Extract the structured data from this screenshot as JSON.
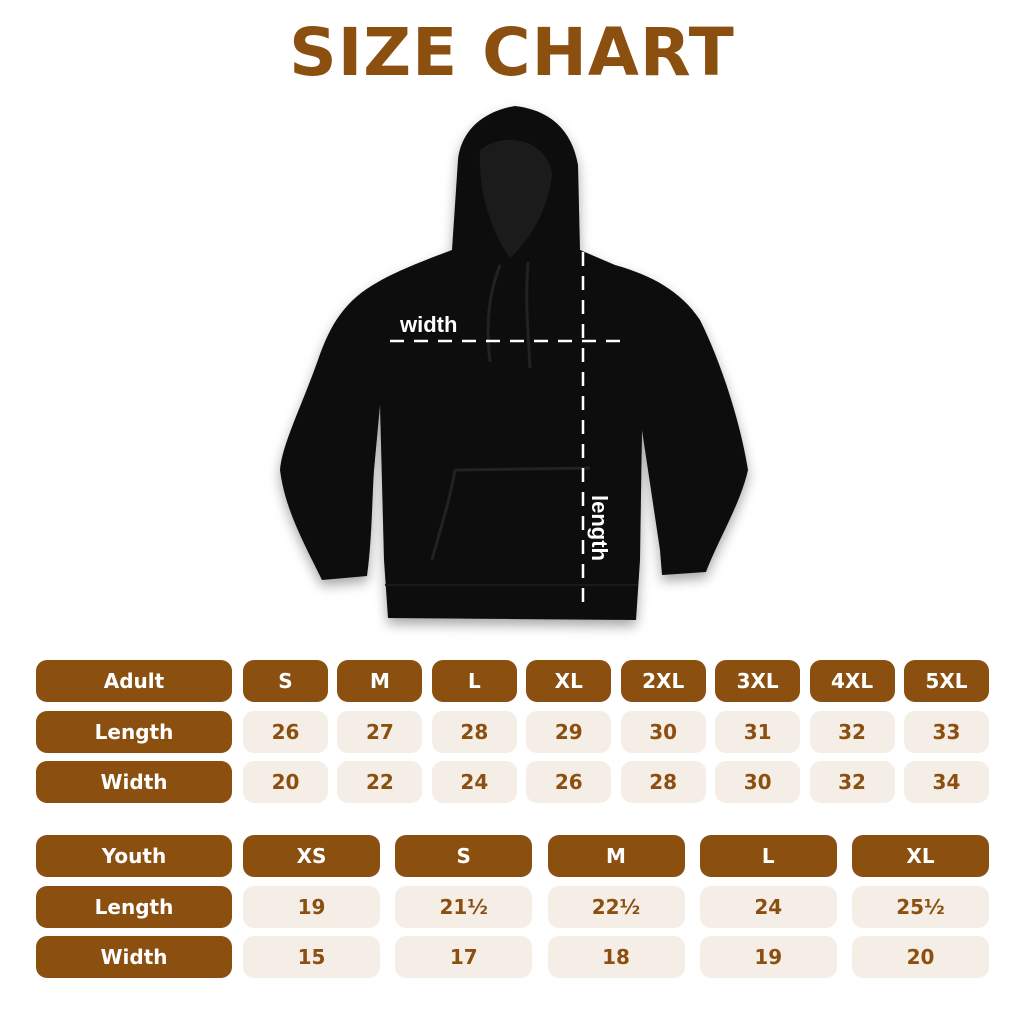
{
  "title": "SIZE CHART",
  "colors": {
    "brand": "#8B4F10",
    "cell_bg": "#F5EEE6",
    "garment": "#0a0a0a"
  },
  "image": {
    "garment": "black hoodie",
    "width_label": "width",
    "length_label": "length"
  },
  "adult": {
    "header": "Adult",
    "sizes": [
      "S",
      "M",
      "L",
      "XL",
      "2XL",
      "3XL",
      "4XL",
      "5XL"
    ],
    "rows": [
      {
        "label": "Length",
        "values": [
          "26",
          "27",
          "28",
          "29",
          "30",
          "31",
          "32",
          "33"
        ]
      },
      {
        "label": "Width",
        "values": [
          "20",
          "22",
          "24",
          "26",
          "28",
          "30",
          "32",
          "34"
        ]
      }
    ]
  },
  "youth": {
    "header": "Youth",
    "sizes": [
      "XS",
      "S",
      "M",
      "L",
      "XL"
    ],
    "rows": [
      {
        "label": "Length",
        "values": [
          "19",
          "21½",
          "22½",
          "24",
          "25½"
        ]
      },
      {
        "label": "Width",
        "values": [
          "15",
          "17",
          "18",
          "19",
          "20"
        ]
      }
    ]
  }
}
